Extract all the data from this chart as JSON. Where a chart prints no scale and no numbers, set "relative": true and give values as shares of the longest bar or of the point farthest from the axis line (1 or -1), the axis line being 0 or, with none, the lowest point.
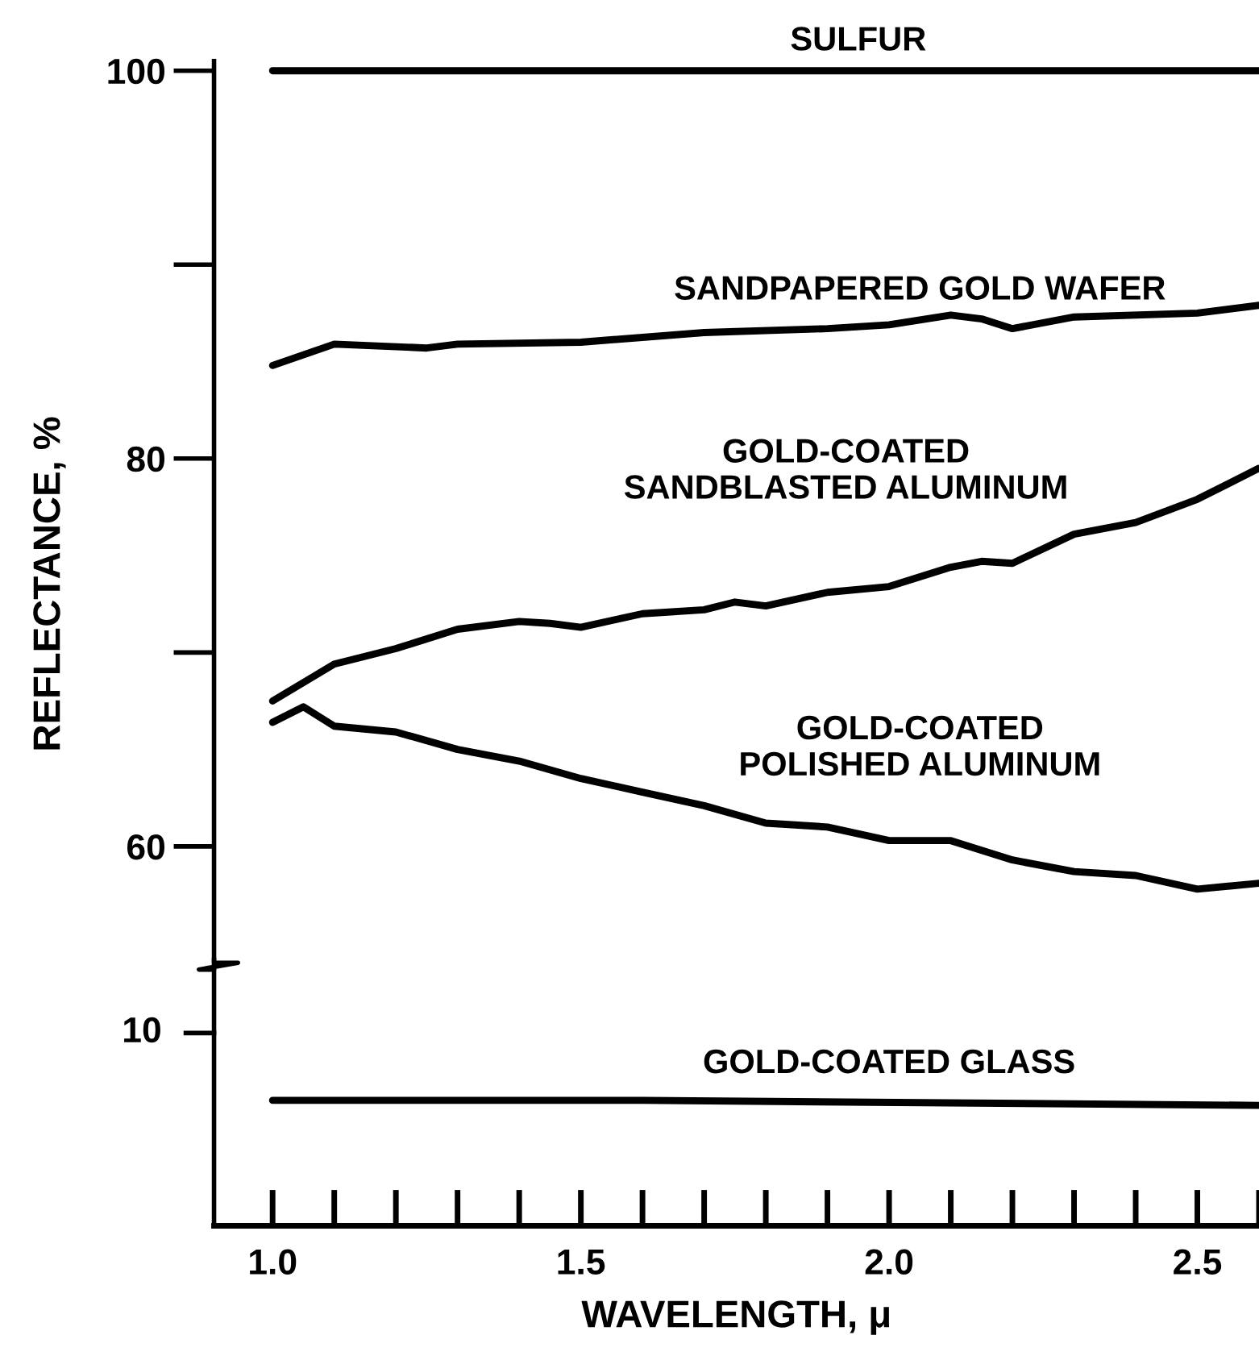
{
  "chart_data": [
    {
      "type": "line",
      "ylabel": "REFLECTANCE, %",
      "xlim": [
        0.905,
        2.6
      ],
      "ylim": [
        54,
        100.5
      ],
      "tick_labels": "y",
      "grid": false,
      "legend": false,
      "yticks": [
        60,
        80,
        100
      ],
      "series": [
        {
          "name": "SULFUR",
          "color": "#000000",
          "x": [
            1.0,
            2.6
          ],
          "values": [
            100,
            100
          ]
        },
        {
          "name": "SANDPAPERED GOLD WAFER",
          "color": "#000000",
          "x": [
            1.0,
            1.1,
            1.25,
            1.3,
            1.5,
            1.7,
            1.9,
            2.0,
            2.1,
            2.15,
            2.2,
            2.3,
            2.5,
            2.6
          ],
          "values": [
            84.8,
            85.9,
            85.7,
            85.9,
            86.0,
            86.5,
            86.7,
            86.9,
            87.4,
            87.2,
            86.7,
            87.3,
            87.5,
            87.9
          ]
        },
        {
          "name": "GOLD-COATED\nSANDBLASTED ALUMINUM",
          "color": "#000000",
          "x": [
            1.0,
            1.1,
            1.2,
            1.3,
            1.4,
            1.45,
            1.5,
            1.6,
            1.7,
            1.75,
            1.8,
            1.9,
            2.0,
            2.1,
            2.15,
            2.2,
            2.3,
            2.4,
            2.5,
            2.6
          ],
          "values": [
            67.5,
            69.4,
            70.2,
            71.2,
            71.6,
            71.5,
            71.3,
            72.0,
            72.2,
            72.6,
            72.4,
            73.1,
            73.4,
            74.4,
            74.7,
            74.6,
            76.1,
            76.7,
            77.9,
            79.5
          ]
        },
        {
          "name": "GOLD-COATED\nPOLISHED ALUMINUM",
          "color": "#000000",
          "x": [
            1.0,
            1.05,
            1.1,
            1.2,
            1.3,
            1.4,
            1.5,
            1.6,
            1.7,
            1.8,
            1.9,
            2.0,
            2.1,
            2.2,
            2.3,
            2.4,
            2.5,
            2.6
          ],
          "values": [
            66.4,
            67.2,
            66.2,
            65.9,
            65.0,
            64.4,
            63.5,
            62.8,
            62.1,
            61.2,
            61.0,
            60.3,
            60.3,
            59.3,
            58.7,
            58.5,
            57.8,
            58.1
          ]
        }
      ]
    },
    {
      "type": "line",
      "xlabel": "WAVELENGTH, μ",
      "xlim": [
        0.905,
        2.6
      ],
      "relative": true,
      "grid": false,
      "legend": false,
      "annotations": [
        "10"
      ],
      "xticks": [
        {
          "value": 1.0,
          "label": "1.0"
        },
        {
          "value": 1.5,
          "label": "1.5"
        },
        {
          "value": 2.0,
          "label": "2.0"
        },
        {
          "value": 2.5,
          "label": "2.5"
        }
      ],
      "series": [
        {
          "name": "GOLD-COATED GLASS",
          "color": "#000000",
          "x": [
            1.0,
            1.6,
            2.6
          ],
          "values": [
            1.0,
            1.0,
            0.96
          ]
        }
      ]
    }
  ]
}
